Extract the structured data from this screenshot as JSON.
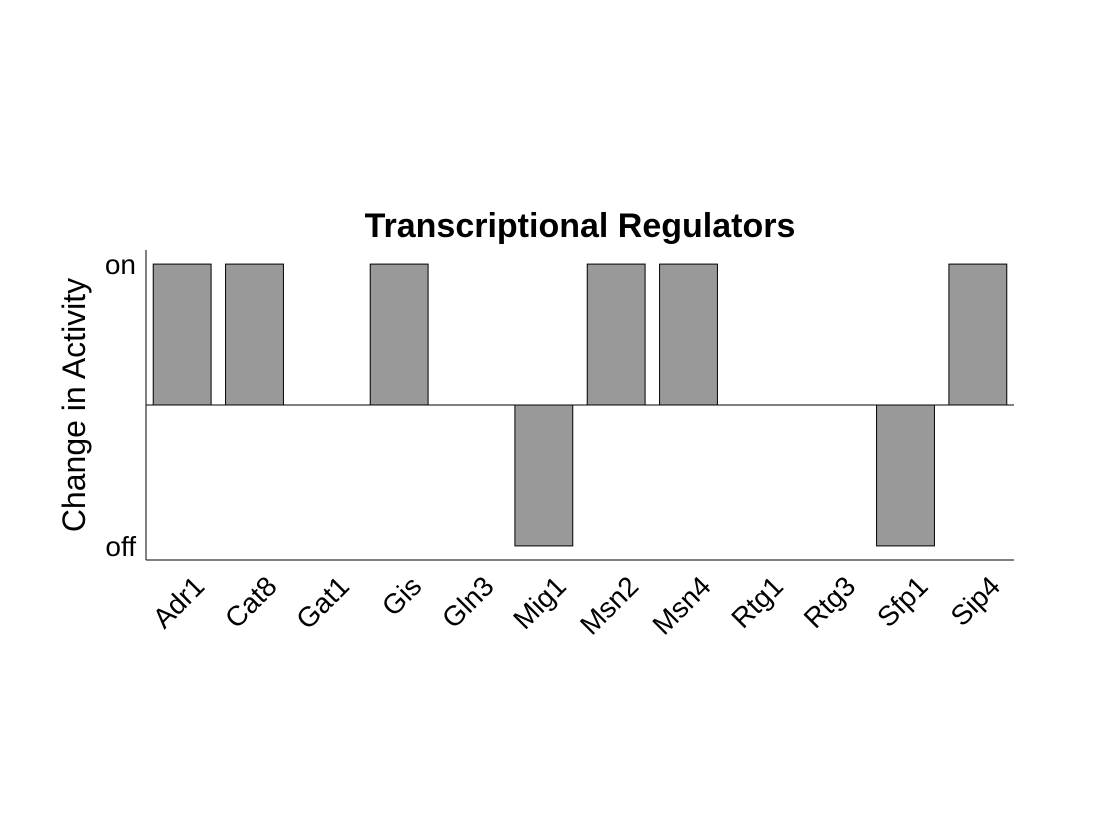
{
  "chart_data": {
    "type": "bar",
    "title": "Transcriptional Regulators",
    "xlabel": "",
    "ylabel": "Change in Activity",
    "categories": [
      "Adr1",
      "Cat8",
      "Gat1",
      "Gis",
      "Gln3",
      "Mig1",
      "Msn2",
      "Msn4",
      "Rtg1",
      "Rtg3",
      "Sfp1",
      "Sip4"
    ],
    "values": [
      1,
      1,
      0,
      1,
      0,
      -1,
      1,
      1,
      0,
      0,
      -1,
      1
    ],
    "yticks": [
      {
        "value": 1,
        "label": "on"
      },
      {
        "value": -1,
        "label": "off"
      }
    ],
    "ylim": [
      -1.1,
      1.1
    ],
    "bar_color": "#999999",
    "grid": false,
    "legend": "none"
  }
}
